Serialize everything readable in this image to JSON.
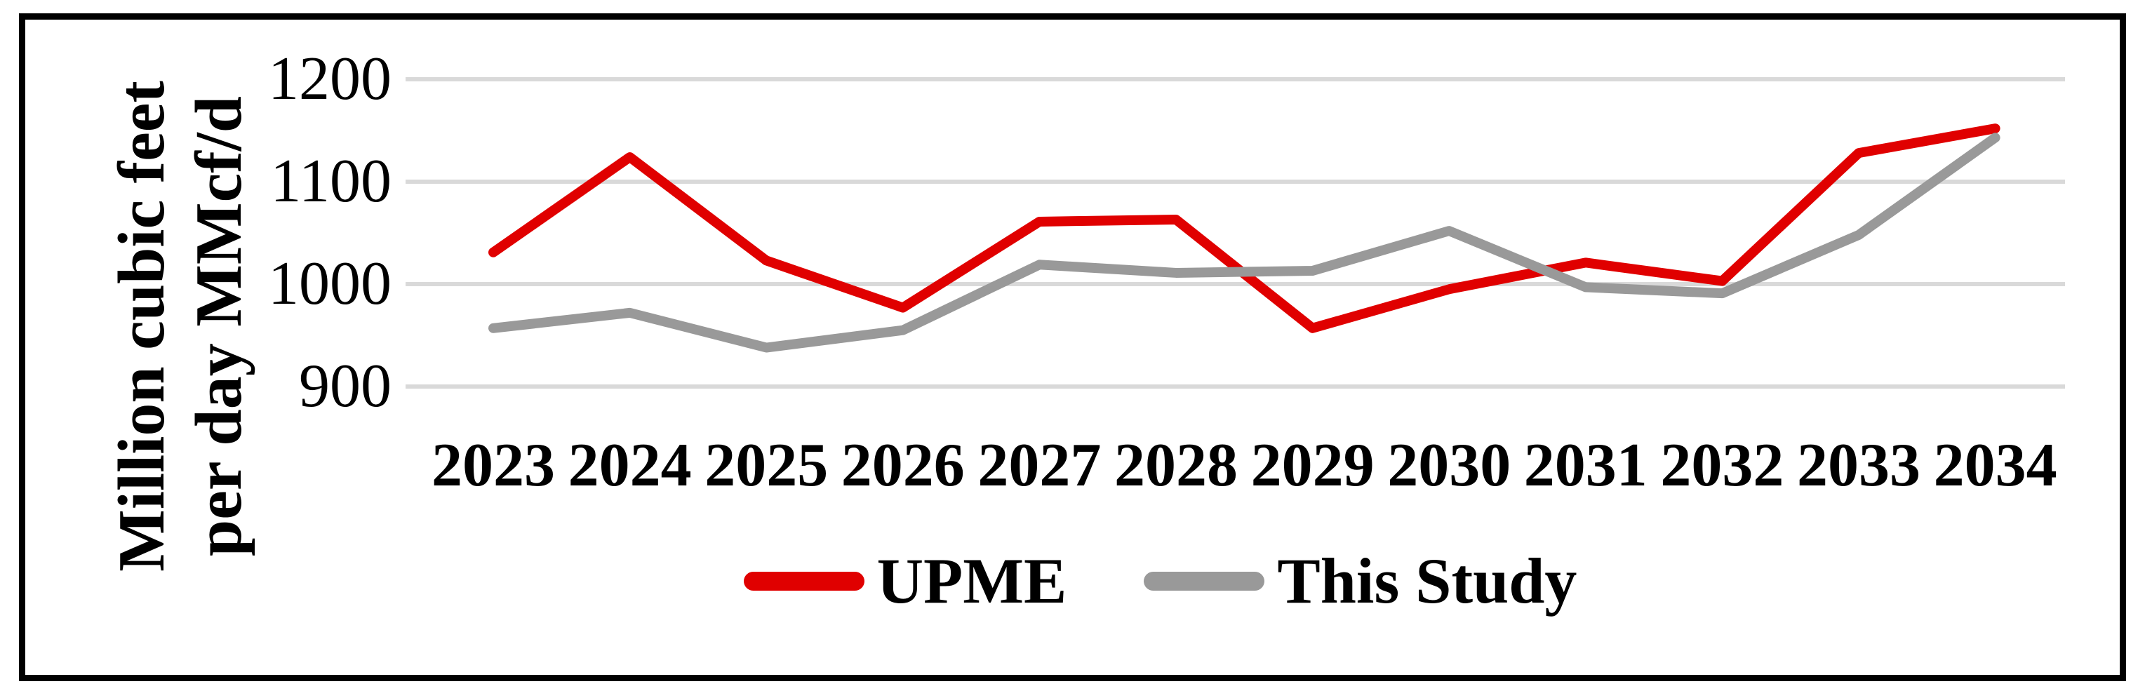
{
  "figure": {
    "background": "#FFFFFF",
    "frame_color": "#000000"
  },
  "chart_data": {
    "type": "line",
    "title": "",
    "categories": [
      "2023",
      "2024",
      "2025",
      "2026",
      "2027",
      "2028",
      "2029",
      "2030",
      "2031",
      "2032",
      "2033",
      "2034"
    ],
    "series": [
      {
        "name": "UPME",
        "color": "#E00000",
        "values": [
          1031,
          1124,
          1023,
          977,
          1061,
          1063,
          957,
          995,
          1021,
          1003,
          1128,
          1152
        ]
      },
      {
        "name": "This Study",
        "color": "#999999",
        "values": [
          957,
          972,
          938,
          955,
          1019,
          1011,
          1013,
          1052,
          997,
          991,
          1048,
          1143
        ]
      }
    ],
    "ylabel_line1": "Million cubic feet",
    "ylabel_line2": "per day MMcf/d",
    "yticks": [
      900,
      1000,
      1100,
      1200
    ],
    "ylim": [
      900,
      1200
    ],
    "grid": true,
    "gridline_color": "#D9D9D9",
    "legend_position": "bottom"
  }
}
